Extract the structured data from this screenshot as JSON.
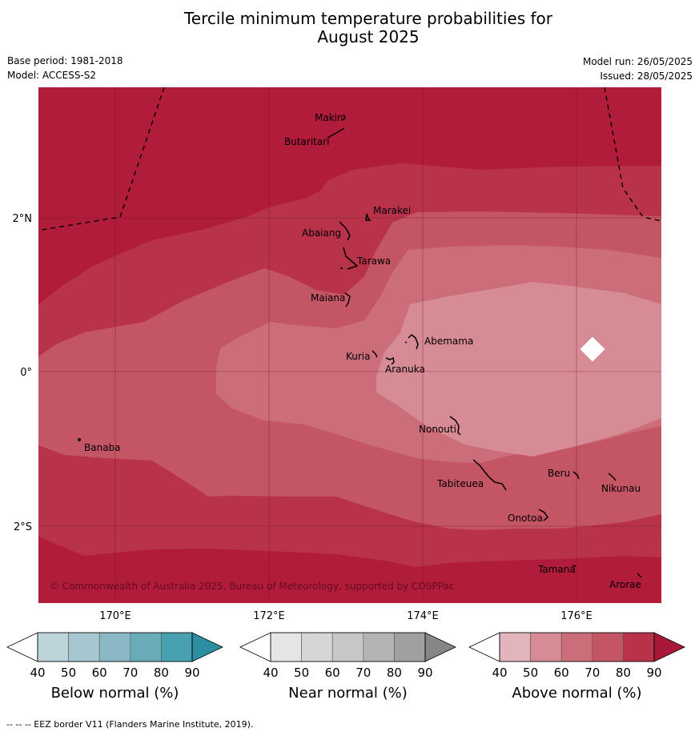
{
  "title_line1": "Tercile minimum temperature probabilities for",
  "title_line2": "August 2025",
  "meta": {
    "base_period": "Base period: 1981-2018",
    "model": "Model: ACCESS-S2",
    "model_run": "Model run: 26/05/2025",
    "issued": "Issued: 28/05/2025"
  },
  "map": {
    "lat_labels": [
      "2°N",
      "0°",
      "2°S"
    ],
    "lon_labels": [
      "170°E",
      "172°E",
      "174°E",
      "176°E"
    ],
    "copyright": "© Commonwealth of Australia 2025, Bureau of Meteorology, supported by COSPPac",
    "places": [
      "Makin",
      "Butaritari",
      "Marakei",
      "Abaiang",
      "Tarawa",
      "Maiana",
      "Abemama",
      "Kuria",
      "Aranuka",
      "Nonouti",
      "Banaba",
      "Beru",
      "Nikunau",
      "Tabiteuea",
      "Onotoa",
      "Tamana",
      "Arorae"
    ]
  },
  "colorbars": [
    {
      "name": "Below normal (%)",
      "ticks": [
        "40",
        "50",
        "60",
        "70",
        "80",
        "90"
      ],
      "colors": [
        "#bed4db",
        "#a6c7cf",
        "#8ab8c4",
        "#6aabb9",
        "#47a1b1",
        "#2b8fa1"
      ]
    },
    {
      "name": "Near normal (%)",
      "ticks": [
        "40",
        "50",
        "60",
        "70",
        "80",
        "90"
      ],
      "colors": [
        "#e5e5e5",
        "#d6d6d6",
        "#c7c7c7",
        "#b4b4b4",
        "#a0a0a0",
        "#868686"
      ]
    },
    {
      "name": "Above normal (%)",
      "ticks": [
        "40",
        "50",
        "60",
        "70",
        "80",
        "90"
      ],
      "colors": [
        "#e2b4bc",
        "#d68b95",
        "#cb6e7a",
        "#c45564",
        "#b8334a",
        "#a81839"
      ]
    }
  ],
  "footnote": "--  --  -- EEZ border V11 (Flanders Marine Institute, 2019)."
}
